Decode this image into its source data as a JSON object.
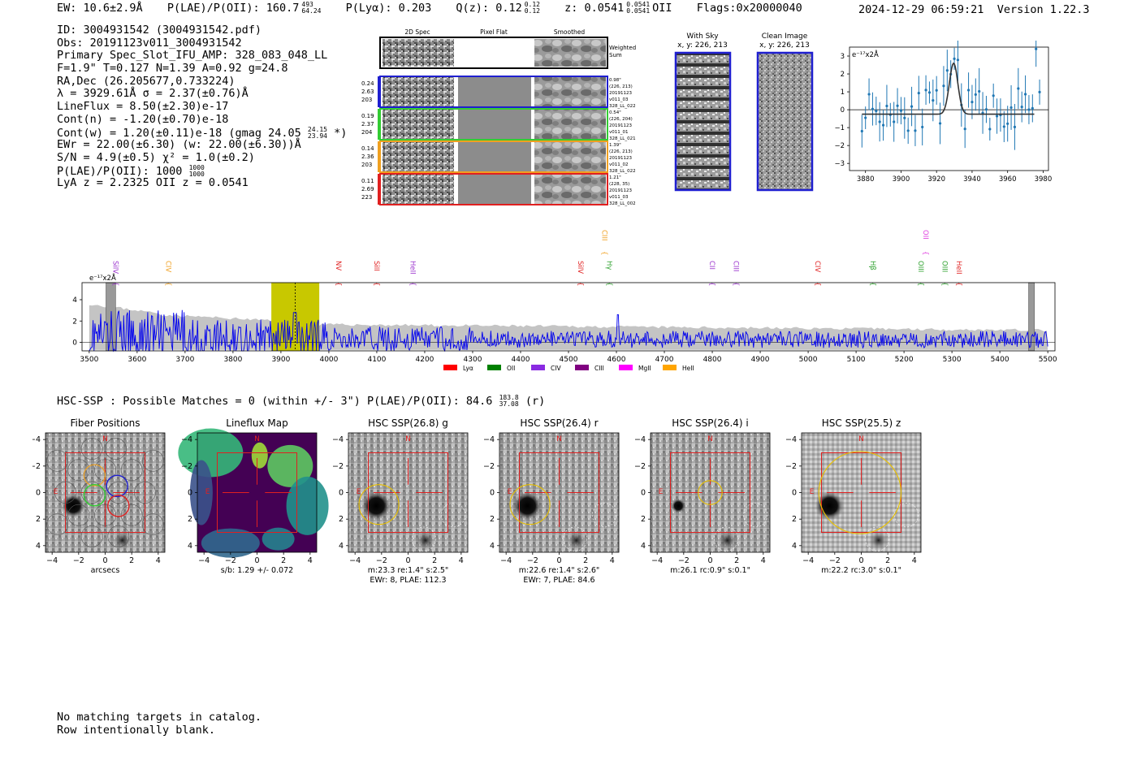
{
  "header": {
    "ew": "EW: 10.6±2.9Å",
    "plae_label": "P(LAE)/P(OII): 160.7",
    "plae_hi": "493",
    "plae_lo": "64.24",
    "plya": "P(Lyα): 0.203",
    "qz_label": "Q(z): 0.12",
    "qz_hi": "0.12",
    "qz_lo": "0.12",
    "z_label": "z: 0.0541",
    "z_hi": "0.0541",
    "z_lo": "0.0541",
    "z_line": "OII",
    "flags": "Flags:0x20000040",
    "datetime": "2024-12-29 06:59:21",
    "version": "Version 1.22.3"
  },
  "info": {
    "id": "ID: 3004931542 (3004931542.pdf)",
    "obs": "Obs: 20191123v011_3004931542",
    "slot": "Primary Spec_Slot_IFU_AMP: 328_083_048_LL",
    "fparams": "F=1.9\"  T=0.127  N=1.39  A=0.92  g=24.8",
    "radec": "RA,Dec (26.205677,0.733224)",
    "lambda": "λ = 3929.61Å  σ = 2.37(±0.76)Å",
    "lineflux": "LineFlux = 8.50(±2.30)e-17",
    "contn": "Cont(n) = -1.20(±0.70)e-18",
    "contw": "Cont(w) = 1.20(±0.11)e-18 (gmag 24.05",
    "contw_hi": "24.15",
    "contw_lo": "23.94",
    "contw_end": "*)",
    "ewr": "EWr = 22.00(±6.30) (w: 22.00(±6.30))Å",
    "sn": "S/N = 4.9(±0.5)  χ² = 1.0(±0.2)",
    "plae": "P(LAE)/P(OII): 1000",
    "plae_hi": "1000",
    "plae_lo": "1000",
    "lyaz": "LyA z = 2.2325  OII z = 0.0541"
  },
  "cutouts": {
    "col_headers": [
      "2D Spec",
      "Pixel Flat",
      "Smoothed"
    ],
    "weighted_sum": [
      "Weighted",
      "Sum"
    ],
    "rows": [
      {
        "left": [
          "0.24",
          "2.63",
          "203"
        ],
        "right": [
          "0.98\"",
          "(226, 213)",
          "20191123",
          "v011_03",
          "328_LL_022"
        ],
        "color": "#1f1fd0"
      },
      {
        "left": [
          "0.19",
          "2.37",
          "204"
        ],
        "right": [
          "0.54\"",
          "(226, 204)",
          "20191123",
          "v011_01",
          "328_LL_021"
        ],
        "color": "#33cc33"
      },
      {
        "left": [
          "0.14",
          "2.36",
          "203"
        ],
        "right": [
          "1.39\"",
          "(226, 213)",
          "20191123",
          "v011_02",
          "328_LL_022"
        ],
        "color": "#f0a020"
      },
      {
        "left": [
          "0.11",
          "2.69",
          "223"
        ],
        "right": [
          "1.21\"",
          "(228, 35)",
          "20191123",
          "v011_03",
          "328_LL_002"
        ],
        "color": "#e02020"
      }
    ]
  },
  "sky": {
    "with_sky_title": "With Sky",
    "with_sky_xy": "x, y: 226, 213",
    "clean_title": "Clean Image",
    "clean_xy": "x, y: 226, 213"
  },
  "zoom_chart": {
    "unit_label": "e⁻¹⁷x2Å",
    "x_ticks": [
      "3880",
      "3900",
      "3920",
      "3940",
      "3960",
      "3980"
    ],
    "y_ticks": [
      "3",
      "2",
      "1",
      "0",
      "−1",
      "−2",
      "−3"
    ],
    "color": "#1f77b4"
  },
  "full_spectrum": {
    "unit_label": "e⁻¹⁷x2Å",
    "x_ticks": [
      "3500",
      "3600",
      "3700",
      "3800",
      "3900",
      "4000",
      "4100",
      "4200",
      "4300",
      "4400",
      "4500",
      "4600",
      "4700",
      "4800",
      "4900",
      "5000",
      "5100",
      "5200",
      "5300",
      "5400",
      "5500"
    ],
    "y_ticks": [
      "4",
      "2",
      "0"
    ],
    "lines": [
      {
        "name": "SiIV",
        "wave": 3545,
        "color": "#9a32cd"
      },
      {
        "name": "CIV",
        "wave": 3655,
        "color": "#f0a020"
      },
      {
        "name": "NV",
        "wave": 4010,
        "color": "#e02020"
      },
      {
        "name": "SiII",
        "wave": 4090,
        "color": "#e02020"
      },
      {
        "name": "HeII",
        "wave": 4165,
        "color": "#9a32cd"
      },
      {
        "name": "SiIV",
        "wave": 4515,
        "color": "#e02020"
      },
      {
        "name": "CIII",
        "wave": 4565,
        "color": "#f0a020",
        "high": true
      },
      {
        "name": "Hγ",
        "wave": 4575,
        "color": "#2ca02c"
      },
      {
        "name": "CII",
        "wave": 4790,
        "color": "#9a32cd"
      },
      {
        "name": "CIII",
        "wave": 4840,
        "color": "#9a32cd"
      },
      {
        "name": "CIV",
        "wave": 5010,
        "color": "#e02020"
      },
      {
        "name": "Hβ",
        "wave": 5125,
        "color": "#2ca02c"
      },
      {
        "name": "OIII",
        "wave": 5225,
        "color": "#2ca02c"
      },
      {
        "name": "OII",
        "wave": 5235,
        "color": "#e040e0",
        "high": true
      },
      {
        "name": "OIII",
        "wave": 5275,
        "color": "#2ca02c"
      },
      {
        "name": "HeII",
        "wave": 5305,
        "color": "#e02020"
      }
    ],
    "legend": [
      {
        "label": "Lyα",
        "color": "#ff0000"
      },
      {
        "label": "OII",
        "color": "#008000"
      },
      {
        "label": "CIV",
        "color": "#8a2be2"
      },
      {
        "label": "CIII",
        "color": "#800080"
      },
      {
        "label": "MgII",
        "color": "#ff00ff"
      },
      {
        "label": "HeII",
        "color": "#ffa500"
      }
    ]
  },
  "hsc": {
    "summary": "HSC-SSP : Possible Matches = 0 (within +/- 3\")  P(LAE)/P(OII): 84.6",
    "summary_hi": "183.8",
    "summary_lo": "37.08",
    "summary_end": "(r)",
    "panels": [
      {
        "title": "Fiber Positions",
        "cap1": "arcsecs",
        "cap2": ""
      },
      {
        "title": "Lineflux Map",
        "cap1": "s/b: 1.29 +/- 0.072",
        "cap2": ""
      },
      {
        "title": "HSC SSP(26.8) g",
        "cap1": "m:23.3  re:1.4\"  s:2.5\"",
        "cap2": "EWr: 8, PLAE: 112.3"
      },
      {
        "title": "HSC SSP(26.4) r",
        "cap1": "m:22.6  re:1.4\"  s:2.6\"",
        "cap2": "EWr: 7, PLAE: 84.6"
      },
      {
        "title": "HSC SSP(26.4) i",
        "cap1": "m:26.1 rc:0.9\"  s:0.1\"",
        "cap2": ""
      },
      {
        "title": "HSC SSP(25.5) z",
        "cap1": "m:22.2 rc:3.0\"  s:0.1\"",
        "cap2": ""
      }
    ],
    "axis_ticks": [
      "−4",
      "−2",
      "0",
      "2",
      "4"
    ],
    "north": "N",
    "east": "E"
  },
  "footer": {
    "line1": "No matching targets in catalog.",
    "line2": "Row intentionally blank."
  }
}
